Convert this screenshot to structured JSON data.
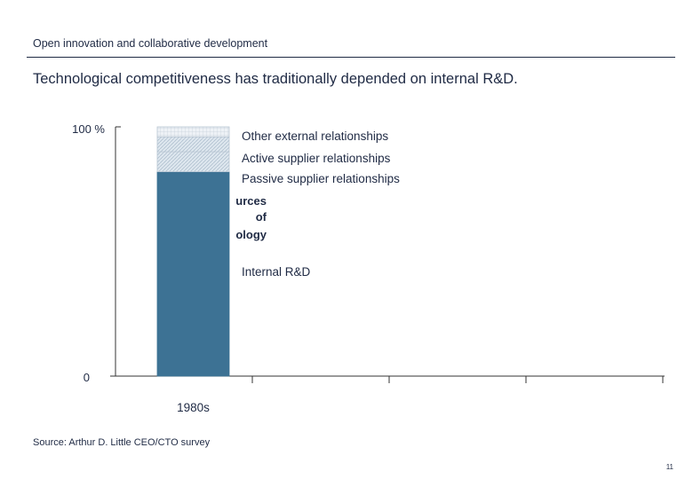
{
  "header": {
    "section_title": "Open innovation and collaborative development",
    "headline": "Technological competitiveness has traditionally depended on internal R&D."
  },
  "chart_data": {
    "type": "bar",
    "stacked": true,
    "categories": [
      "1980s"
    ],
    "ylim": [
      0,
      100
    ],
    "y_tick_labels": [
      "0",
      "100 %"
    ],
    "series": [
      {
        "name": "Internal R&D",
        "values": [
          82
        ],
        "fill": "internal"
      },
      {
        "name": "Passive supplier relationships",
        "values": [
          8
        ],
        "fill": "hatch"
      },
      {
        "name": "Active supplier relationships",
        "values": [
          6
        ],
        "fill": "hatch"
      },
      {
        "name": "Other external relationships",
        "values": [
          4
        ],
        "fill": "grid"
      }
    ],
    "vertical_annotation": [
      "urces",
      "of",
      "ology"
    ]
  },
  "colors": {
    "internal": "#3d7294",
    "hatch_bg": "#dde6ee",
    "grid_bg": "#eef2f6",
    "text": "#1f2a44",
    "axis": "#333333"
  },
  "footer": {
    "source": "Source: Arthur D. Little CEO/CTO survey",
    "page_number": "11"
  }
}
